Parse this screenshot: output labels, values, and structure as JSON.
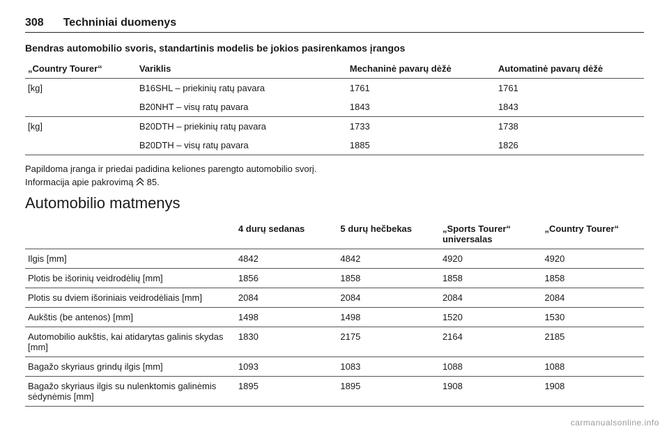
{
  "page": {
    "number": "308",
    "title": "Techniniai duomenys"
  },
  "weight": {
    "heading": "Bendras automobilio svoris, standartinis modelis be jokios pasirenkamos įrangos",
    "headers": {
      "col1": "„Country Tourer“",
      "col2": "Variklis",
      "col3": "Mechaninė pavarų dėžė",
      "col4": "Automatinė pavarų dėžė"
    },
    "groups": [
      {
        "group_label": "[kg]",
        "rows": [
          {
            "engine": "B16SHL – priekinių ratų pavara",
            "manual": "1761",
            "auto": "1761"
          },
          {
            "engine": "B20NHT – visų ratų pavara",
            "manual": "1843",
            "auto": "1843"
          }
        ]
      },
      {
        "group_label": "[kg]",
        "rows": [
          {
            "engine": "B20DTH – priekinių ratų pavara",
            "manual": "1733",
            "auto": "1738"
          },
          {
            "engine": "B20DTH – visų ratų pavara",
            "manual": "1885",
            "auto": "1826"
          }
        ]
      }
    ],
    "note": "Papildoma įranga ir priedai padidina keliones parengto automobilio svorį.",
    "info_prefix": "Informacija apie pakrovimą",
    "info_ref": "85."
  },
  "dimensions": {
    "heading": "Automobilio matmenys",
    "col_headers": [
      "4 durų sedanas",
      "5 durų hečbekas",
      "„Sports Tourer“ universalas",
      "„Country Tourer“"
    ],
    "rows": [
      {
        "label": "Ilgis [mm]",
        "v": [
          "4842",
          "4842",
          "4920",
          "4920"
        ]
      },
      {
        "label": "Plotis be išorinių veidrodėlių [mm]",
        "v": [
          "1856",
          "1858",
          "1858",
          "1858"
        ]
      },
      {
        "label": "Plotis su dviem išoriniais veidrodėliais [mm]",
        "v": [
          "2084",
          "2084",
          "2084",
          "2084"
        ]
      },
      {
        "label": "Aukštis (be antenos) [mm]",
        "v": [
          "1498",
          "1498",
          "1520",
          "1530"
        ]
      },
      {
        "label": "Automobilio aukštis, kai atidarytas galinis skydas [mm]",
        "v": [
          "1830",
          "2175",
          "2164",
          "2185"
        ]
      },
      {
        "label": "Bagažo skyriaus grindų ilgis [mm]",
        "v": [
          "1093",
          "1083",
          "1088",
          "1088"
        ]
      },
      {
        "label": "Bagažo skyriaus ilgis su nulenktomis galinėmis sėdynėmis [mm]",
        "v": [
          "1895",
          "1895",
          "1908",
          "1908"
        ]
      }
    ]
  },
  "watermark": "carmanualsonline.info"
}
